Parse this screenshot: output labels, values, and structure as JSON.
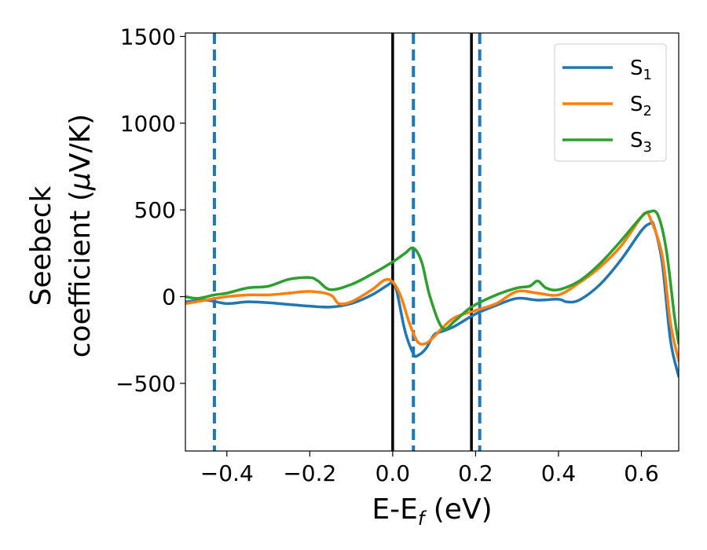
{
  "chart_data": {
    "type": "line",
    "xlabel": {
      "main": "E-E",
      "sub": "f",
      "unit": " (eV)"
    },
    "ylabel": {
      "line1": "Seebeck",
      "line2_prefix": "coefficient  (",
      "mu": "μ",
      "line2_suffix": "V/K)"
    },
    "xlim": [
      -0.5,
      0.69
    ],
    "ylim": [
      -890,
      1520
    ],
    "xticks": [
      -0.4,
      -0.2,
      0.0,
      0.2,
      0.4,
      0.6
    ],
    "xtick_labels": [
      "−0.4",
      "−0.2",
      "0.0",
      "0.2",
      "0.4",
      "0.6"
    ],
    "yticks": [
      -500,
      0,
      500,
      1000,
      1500
    ],
    "ytick_labels": [
      "−500",
      "0",
      "500",
      "1000",
      "1500"
    ],
    "grid": false,
    "legend_position": "top-right",
    "vlines": [
      {
        "x": -0.43,
        "style": "dashed",
        "color": "#1f77b4"
      },
      {
        "x": 0.0,
        "style": "solid",
        "color": "#000000"
      },
      {
        "x": 0.05,
        "style": "dashed",
        "color": "#1f77b4"
      },
      {
        "x": 0.19,
        "style": "solid",
        "color": "#000000"
      },
      {
        "x": 0.21,
        "style": "dashed",
        "color": "#1f77b4"
      }
    ],
    "series": [
      {
        "name": "S",
        "sub": "1",
        "color": "#1f77b4",
        "points": [
          [
            -0.5,
            -30
          ],
          [
            -0.45,
            -20
          ],
          [
            -0.4,
            -40
          ],
          [
            -0.35,
            -30
          ],
          [
            -0.3,
            -35
          ],
          [
            -0.25,
            -45
          ],
          [
            -0.2,
            -55
          ],
          [
            -0.15,
            -60
          ],
          [
            -0.1,
            -40
          ],
          [
            -0.05,
            10
          ],
          [
            -0.01,
            70
          ],
          [
            0.0,
            80
          ],
          [
            0.01,
            30
          ],
          [
            0.03,
            -200
          ],
          [
            0.05,
            -330
          ],
          [
            0.06,
            -340
          ],
          [
            0.08,
            -300
          ],
          [
            0.1,
            -220
          ],
          [
            0.12,
            -200
          ],
          [
            0.15,
            -170
          ],
          [
            0.2,
            -100
          ],
          [
            0.25,
            -50
          ],
          [
            0.3,
            -10
          ],
          [
            0.35,
            -20
          ],
          [
            0.4,
            -15
          ],
          [
            0.42,
            -30
          ],
          [
            0.45,
            -20
          ],
          [
            0.5,
            70
          ],
          [
            0.55,
            210
          ],
          [
            0.6,
            380
          ],
          [
            0.62,
            420
          ],
          [
            0.63,
            410
          ],
          [
            0.65,
            200
          ],
          [
            0.67,
            -250
          ],
          [
            0.69,
            -460
          ]
        ]
      },
      {
        "name": "S",
        "sub": "2",
        "color": "#ff7f0e",
        "points": [
          [
            -0.5,
            -40
          ],
          [
            -0.45,
            -20
          ],
          [
            -0.4,
            0
          ],
          [
            -0.35,
            10
          ],
          [
            -0.3,
            10
          ],
          [
            -0.25,
            20
          ],
          [
            -0.2,
            30
          ],
          [
            -0.15,
            10
          ],
          [
            -0.13,
            -40
          ],
          [
            -0.1,
            -30
          ],
          [
            -0.05,
            40
          ],
          [
            -0.02,
            95
          ],
          [
            0.0,
            85
          ],
          [
            0.02,
            0
          ],
          [
            0.04,
            -150
          ],
          [
            0.06,
            -260
          ],
          [
            0.08,
            -270
          ],
          [
            0.1,
            -230
          ],
          [
            0.12,
            -180
          ],
          [
            0.15,
            -120
          ],
          [
            0.2,
            -80
          ],
          [
            0.25,
            -40
          ],
          [
            0.3,
            30
          ],
          [
            0.35,
            20
          ],
          [
            0.4,
            10
          ],
          [
            0.45,
            80
          ],
          [
            0.5,
            170
          ],
          [
            0.55,
            290
          ],
          [
            0.6,
            460
          ],
          [
            0.61,
            480
          ],
          [
            0.62,
            460
          ],
          [
            0.65,
            240
          ],
          [
            0.67,
            -150
          ],
          [
            0.69,
            -370
          ]
        ]
      },
      {
        "name": "S",
        "sub": "3",
        "color": "#2ca02c",
        "points": [
          [
            -0.5,
            0
          ],
          [
            -0.47,
            -10
          ],
          [
            -0.43,
            10
          ],
          [
            -0.4,
            20
          ],
          [
            -0.35,
            50
          ],
          [
            -0.3,
            60
          ],
          [
            -0.25,
            100
          ],
          [
            -0.2,
            110
          ],
          [
            -0.18,
            90
          ],
          [
            -0.15,
            40
          ],
          [
            -0.1,
            70
          ],
          [
            -0.05,
            130
          ],
          [
            0.0,
            200
          ],
          [
            0.03,
            250
          ],
          [
            0.05,
            280
          ],
          [
            0.07,
            200
          ],
          [
            0.09,
            0
          ],
          [
            0.12,
            -180
          ],
          [
            0.15,
            -140
          ],
          [
            0.19,
            -60
          ],
          [
            0.25,
            10
          ],
          [
            0.3,
            50
          ],
          [
            0.33,
            60
          ],
          [
            0.35,
            90
          ],
          [
            0.37,
            50
          ],
          [
            0.4,
            40
          ],
          [
            0.45,
            90
          ],
          [
            0.5,
            190
          ],
          [
            0.55,
            320
          ],
          [
            0.6,
            460
          ],
          [
            0.62,
            490
          ],
          [
            0.64,
            470
          ],
          [
            0.66,
            270
          ],
          [
            0.68,
            -120
          ],
          [
            0.69,
            -270
          ]
        ]
      }
    ]
  }
}
